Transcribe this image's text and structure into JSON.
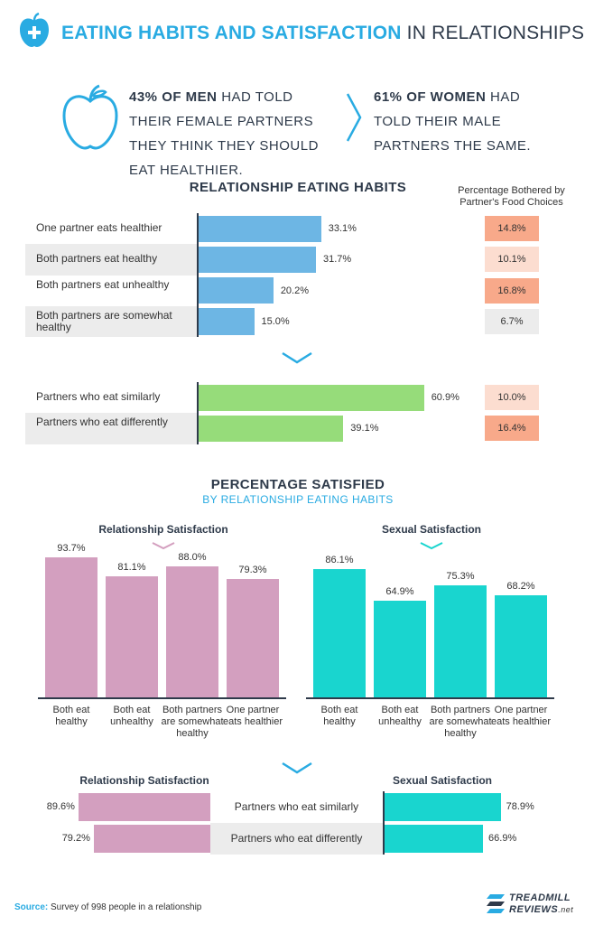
{
  "header": {
    "title_bold": "EATING HABITS AND SATISFACTION",
    "title_light": "IN RELATIONSHIPS"
  },
  "stats": {
    "men_bold": "43% OF MEN",
    "men_rest": "HAD TOLD THEIR FEMALE PARTNERS THEY THINK THEY SHOULD EAT HEALTHIER.",
    "women_bold": "61% OF WOMEN",
    "women_rest": "HAD TOLD THEIR MALE PARTNERS THE SAME."
  },
  "habits": {
    "title": "RELATIONSHIP EATING HABITS",
    "bothered_header": "Percentage Bothered by Partner's Food Choices"
  },
  "section2": {
    "title": "PERCENTAGE SATISFIED",
    "subtitle": "BY RELATIONSHIP EATING HABITS"
  },
  "footer": {
    "source_label": "Source:",
    "source_text": "Survey of 998 people in a relationship",
    "brand_line1": "TREADMILL",
    "brand_line2": "REVIEWS",
    "brand_suffix": ".net"
  },
  "colors": {
    "accent": "#29abe2",
    "blue_bar": "#6db6e4",
    "green_bar": "#96dc7a",
    "pink_bar": "#d39fbf",
    "teal_bar": "#19d5cf",
    "dark": "#2e3a4a"
  },
  "chart_data": [
    {
      "type": "bar",
      "orientation": "horizontal",
      "title": "RELATIONSHIP EATING HABITS",
      "categories": [
        "One partner eats healthier",
        "Both partners eat healthy",
        "Both partners eat unhealthy",
        "Both partners are somewhat healthy"
      ],
      "values": [
        33.1,
        31.7,
        20.2,
        15.0
      ],
      "value_labels": [
        "33.1%",
        "31.7%",
        "20.2%",
        "15.0%"
      ],
      "bothered": [
        "14.8%",
        "10.1%",
        "16.8%",
        "6.7%"
      ],
      "bothered_values": [
        14.8,
        10.1,
        16.8,
        6.7
      ],
      "bothered_colors": [
        "#f8a98a",
        "#fcddd0",
        "#f8a98a",
        "#ececec"
      ]
    },
    {
      "type": "bar",
      "orientation": "horizontal",
      "categories": [
        "Partners who eat similarly",
        "Partners who eat differently"
      ],
      "values": [
        60.9,
        39.1
      ],
      "value_labels": [
        "60.9%",
        "39.1%"
      ],
      "bothered": [
        "10.0%",
        "16.4%"
      ],
      "bothered_values": [
        10.0,
        16.4
      ],
      "bothered_colors": [
        "#fcddd0",
        "#f8a98a"
      ]
    },
    {
      "type": "bar",
      "title": "Relationship Satisfaction",
      "categories": [
        "Both eat healthy",
        "Both eat unhealthy",
        "Both partners are somewhat healthy",
        "One partner eats healthier"
      ],
      "values": [
        93.7,
        81.1,
        88.0,
        79.3
      ],
      "value_labels": [
        "93.7%",
        "81.1%",
        "88.0%",
        "79.3%"
      ]
    },
    {
      "type": "bar",
      "title": "Sexual Satisfaction",
      "categories": [
        "Both eat healthy",
        "Both eat unhealthy",
        "Both partners are somewhat healthy",
        "One partner eats healthier"
      ],
      "values": [
        86.1,
        64.9,
        75.3,
        68.2
      ],
      "value_labels": [
        "86.1%",
        "64.9%",
        "75.3%",
        "68.2%"
      ]
    },
    {
      "type": "bar",
      "orientation": "horizontal",
      "categories": [
        "Partners who eat similarly",
        "Partners who eat differently"
      ],
      "relationship_title": "Relationship Satisfaction",
      "sexual_title": "Sexual Satisfaction",
      "relationship": [
        89.6,
        79.2
      ],
      "relationship_labels": [
        "89.6%",
        "79.2%"
      ],
      "sexual": [
        78.9,
        66.9
      ],
      "sexual_labels": [
        "78.9%",
        "66.9%"
      ]
    }
  ]
}
